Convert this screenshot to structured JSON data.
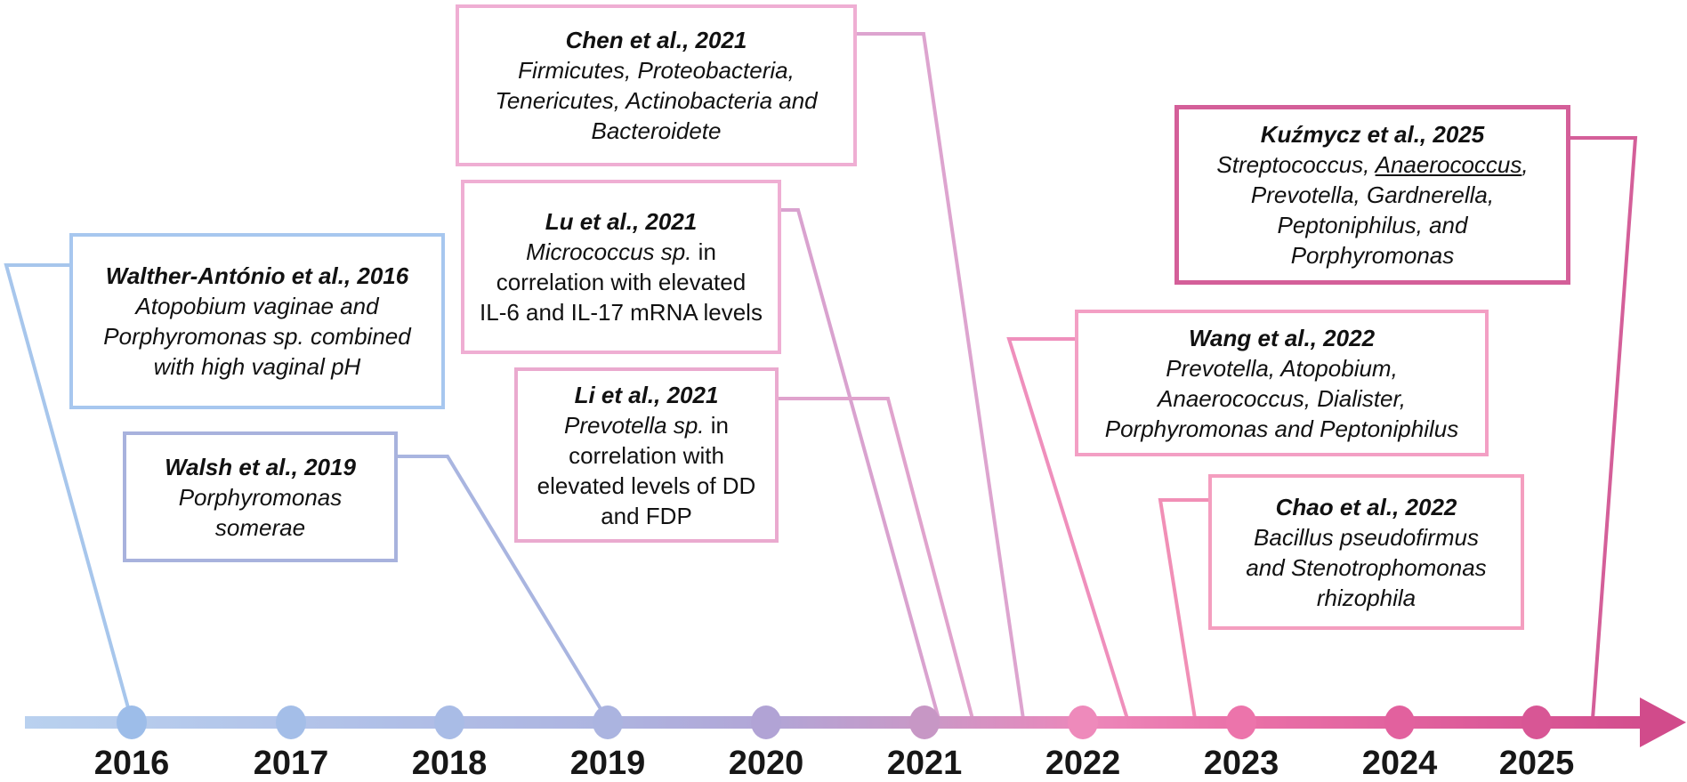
{
  "timeline": {
    "years": [
      "2016",
      "2017",
      "2018",
      "2019",
      "2020",
      "2021",
      "2022",
      "2023",
      "2024",
      "2025"
    ]
  },
  "colors": {
    "timeline_left": "#b9d1ef",
    "timeline_mid_lavender": "#b2a5d6",
    "timeline_pink": "#ec87ba",
    "timeline_right": "#d04a8a",
    "arrow": "#d14b8b"
  },
  "boxes": [
    {
      "id": "walther",
      "title": "Walther-António et al., 2016",
      "border_color": "#a7c7ef",
      "connector_color": "#a7c6ec",
      "lines": [
        [
          {
            "text": "Atopobium vaginae and",
            "italic": true
          }
        ],
        [
          {
            "text": "Porphyromonas sp. combined",
            "italic": true
          }
        ],
        [
          {
            "text": "with high vaginal pH",
            "italic": true
          }
        ]
      ]
    },
    {
      "id": "walsh",
      "title": "Walsh et al., 2019",
      "border_color": "#a8b2dd",
      "connector_color": "#a9b5e0",
      "lines": [
        [
          {
            "text": "Porphyromonas",
            "italic": true
          }
        ],
        [
          {
            "text": "somerae",
            "italic": true
          }
        ]
      ]
    },
    {
      "id": "chen",
      "title": "Chen et al., 2021",
      "border_color": "#efaed3",
      "connector_color": "#dda4cf",
      "lines": [
        [
          {
            "text": "Firmicutes, Proteobacteria,",
            "italic": true
          }
        ],
        [
          {
            "text": "Tenericutes, Actinobacteria and",
            "italic": true
          }
        ],
        [
          {
            "text": "Bacteroidete",
            "italic": true
          }
        ]
      ]
    },
    {
      "id": "lu",
      "title": "Lu et al., 2021",
      "border_color": "#efaed3",
      "connector_color": "#d9a2cf",
      "lines": [
        [
          {
            "text": "Micrococcus sp.",
            "italic": true
          },
          {
            "text": " in"
          }
        ],
        [
          {
            "text": "correlation with elevated"
          }
        ],
        [
          {
            "text": "IL-6 and IL-17 mRNA levels"
          }
        ]
      ]
    },
    {
      "id": "li",
      "title": "Li et al., 2021",
      "border_color": "#eaaacf",
      "connector_color": "#e0a3cd",
      "lines": [
        [
          {
            "text": "Prevotella sp.",
            "italic": true
          },
          {
            "text": " in"
          }
        ],
        [
          {
            "text": "correlation with"
          }
        ],
        [
          {
            "text": "elevated levels of DD"
          }
        ],
        [
          {
            "text": "and FDP"
          }
        ]
      ]
    },
    {
      "id": "kuzmycz",
      "title": "Kuźmycz et al., 2025",
      "border_color": "#d45f99",
      "connector_color": "#d45f99",
      "lines": [
        [
          {
            "text": "Streptococcus, ",
            "italic": true
          },
          {
            "text": "Anaerococcus",
            "italic": true,
            "underline": true
          },
          {
            "text": ",",
            "italic": true
          }
        ],
        [
          {
            "text": "Prevotella, Gardnerella,",
            "italic": true
          }
        ],
        [
          {
            "text": "Peptoniphilus, and",
            "italic": true
          }
        ],
        [
          {
            "text": "Porphyromonas",
            "italic": true
          }
        ]
      ]
    },
    {
      "id": "wang",
      "title": "Wang et al., 2022",
      "border_color": "#f39fc4",
      "connector_color": "#ef8fbc",
      "lines": [
        [
          {
            "text": "Prevotella, Atopobium,",
            "italic": true
          }
        ],
        [
          {
            "text": "Anaerococcus, Dialister,",
            "italic": true
          }
        ],
        [
          {
            "text": "Porphyromonas and Peptoniphilus",
            "italic": true
          }
        ]
      ]
    },
    {
      "id": "chao",
      "title": "Chao et al., 2022",
      "border_color": "#f49ebf",
      "connector_color": "#f18fb6",
      "lines": [
        [
          {
            "text": "Bacillus pseudofirmus",
            "italic": true
          }
        ],
        [
          {
            "text": "and Stenotrophomonas",
            "italic": true
          }
        ],
        [
          {
            "text": "rhizophila",
            "italic": true
          }
        ]
      ]
    }
  ]
}
